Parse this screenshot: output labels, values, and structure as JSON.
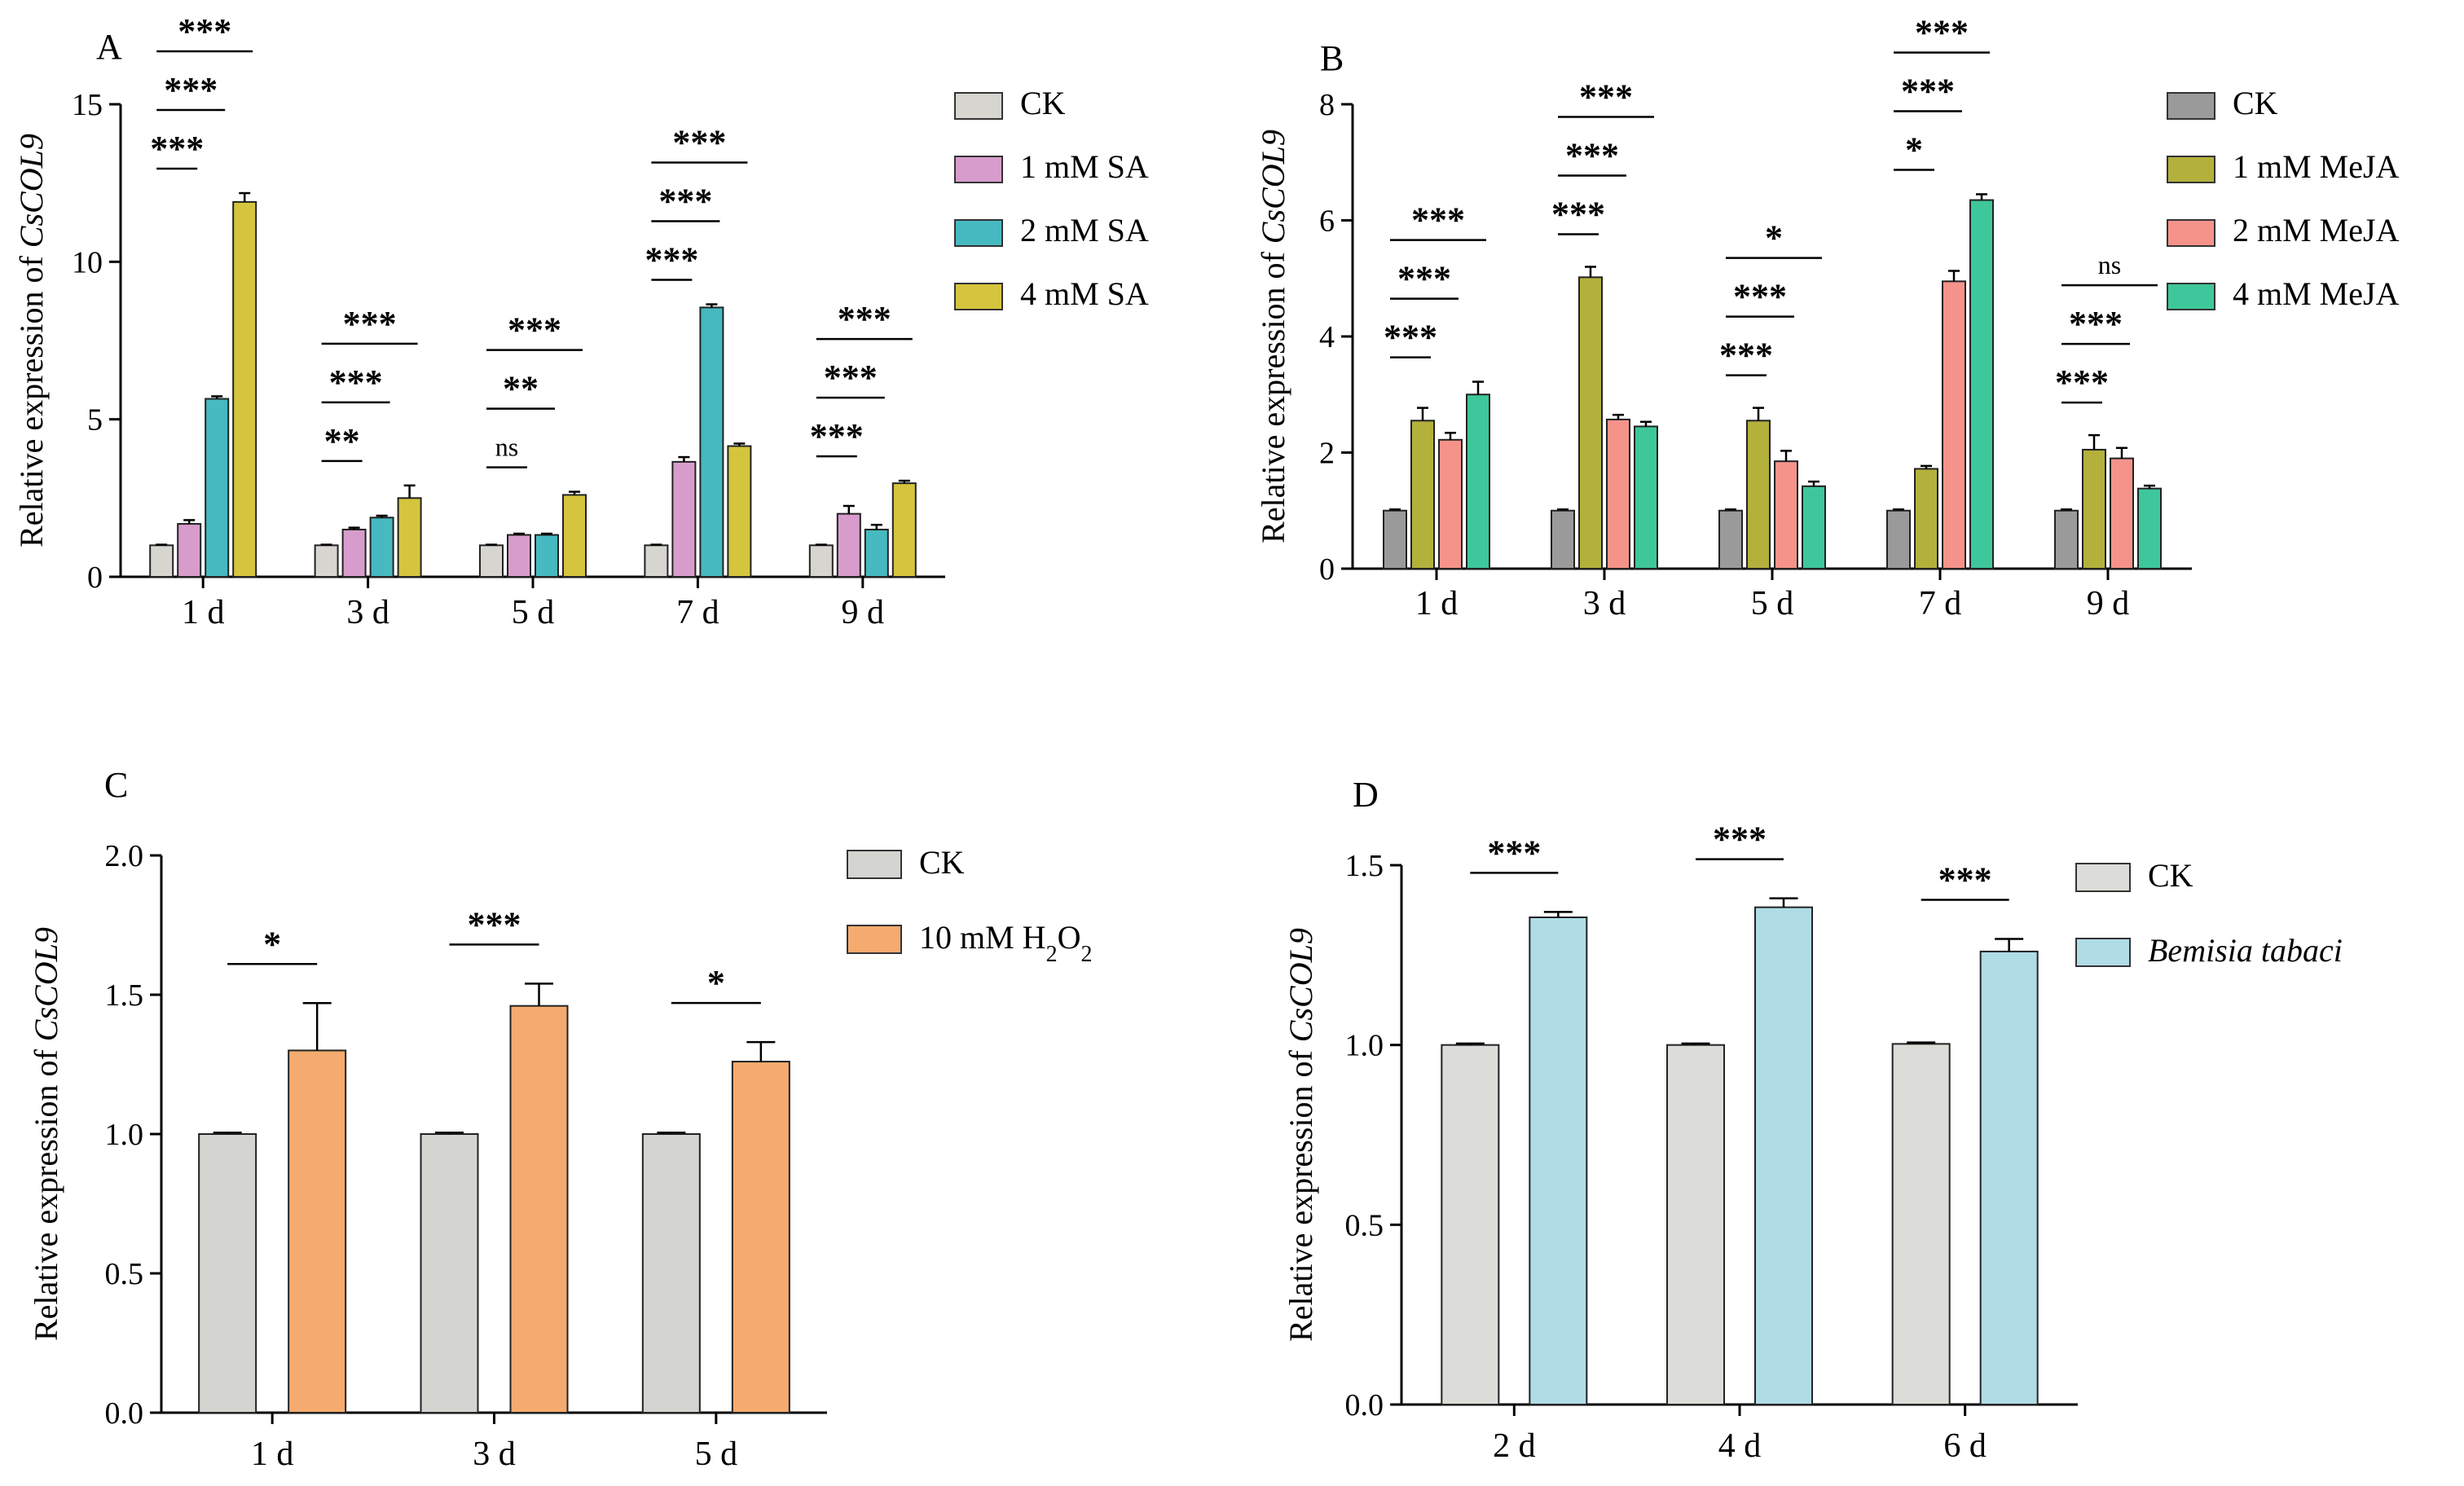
{
  "chart_data": [
    {
      "panel": "A",
      "type": "bar",
      "ylabel_prefix": "Relative expression of ",
      "ylabel_gene": "CsCOL9",
      "ylim": [
        0,
        15
      ],
      "yticks": [
        "0",
        "5",
        "10",
        "15"
      ],
      "categories": [
        "1 d",
        "3 d",
        "5 d",
        "7 d",
        "9 d"
      ],
      "series": [
        {
          "name": "CK",
          "name_sub": "",
          "color": "#d6d5d0",
          "values": [
            1.0,
            1.0,
            1.0,
            1.0,
            1.0
          ],
          "errors": [
            0.02,
            0.02,
            0.02,
            0.02,
            0.02
          ]
        },
        {
          "name": "1 mM SA",
          "name_sub": "",
          "color": "#d79ccc",
          "values": [
            1.68,
            1.5,
            1.33,
            3.65,
            2.0
          ],
          "errors": [
            0.12,
            0.06,
            0.04,
            0.15,
            0.25
          ]
        },
        {
          "name": "2 mM SA",
          "name_sub": "",
          "color": "#46b9c1",
          "values": [
            5.65,
            1.88,
            1.33,
            8.55,
            1.5
          ],
          "errors": [
            0.08,
            0.06,
            0.04,
            0.1,
            0.15
          ]
        },
        {
          "name": "4 mM SA",
          "name_sub": "",
          "color": "#d5c53e",
          "values": [
            11.9,
            2.5,
            2.6,
            4.15,
            2.97
          ],
          "errors": [
            0.28,
            0.4,
            0.1,
            0.08,
            0.08
          ]
        }
      ],
      "significance": [
        [
          {
            "t": 1,
            "label": "***"
          },
          {
            "t": 2,
            "label": "***"
          },
          {
            "t": 3,
            "label": "***"
          }
        ],
        [
          {
            "t": 1,
            "label": "**"
          },
          {
            "t": 2,
            "label": "***"
          },
          {
            "t": 3,
            "label": "***"
          }
        ],
        [
          {
            "t": 1,
            "label": "ns"
          },
          {
            "t": 2,
            "label": "**"
          },
          {
            "t": 3,
            "label": "***"
          }
        ],
        [
          {
            "t": 1,
            "label": "***"
          },
          {
            "t": 2,
            "label": "***"
          },
          {
            "t": 3,
            "label": "***"
          }
        ],
        [
          {
            "t": 1,
            "label": "***"
          },
          {
            "t": 2,
            "label": "***"
          },
          {
            "t": 3,
            "label": "***"
          }
        ]
      ]
    },
    {
      "panel": "B",
      "type": "bar",
      "ylabel_prefix": "Relative expression of ",
      "ylabel_gene": "CsCOL9",
      "ylim": [
        0,
        8
      ],
      "yticks": [
        "0",
        "2",
        "4",
        "6",
        "8"
      ],
      "categories": [
        "1 d",
        "3 d",
        "5 d",
        "7 d",
        "9 d"
      ],
      "series": [
        {
          "name": "CK",
          "name_sub": "",
          "color": "#9a9a9a",
          "values": [
            1.0,
            1.0,
            1.0,
            1.0,
            1.0
          ],
          "errors": [
            0.02,
            0.02,
            0.02,
            0.02,
            0.02
          ]
        },
        {
          "name": "1 mM MeJA",
          "name_sub": "",
          "color": "#b3b03c",
          "values": [
            2.55,
            5.02,
            2.55,
            1.72,
            2.05
          ],
          "errors": [
            0.22,
            0.18,
            0.22,
            0.05,
            0.25
          ]
        },
        {
          "name": "2 mM MeJA",
          "name_sub": "",
          "color": "#f5938a",
          "values": [
            2.22,
            2.57,
            1.85,
            4.95,
            1.9
          ],
          "errors": [
            0.12,
            0.08,
            0.18,
            0.18,
            0.18
          ]
        },
        {
          "name": "4 mM MeJA",
          "name_sub": "",
          "color": "#3dc79a",
          "values": [
            3.0,
            2.45,
            1.42,
            6.35,
            1.38
          ],
          "errors": [
            0.22,
            0.08,
            0.08,
            0.1,
            0.05
          ]
        }
      ],
      "significance": [
        [
          {
            "t": 1,
            "label": "***"
          },
          {
            "t": 2,
            "label": "***"
          },
          {
            "t": 3,
            "label": "***"
          }
        ],
        [
          {
            "t": 1,
            "label": "***"
          },
          {
            "t": 2,
            "label": "***"
          },
          {
            "t": 3,
            "label": "***"
          }
        ],
        [
          {
            "t": 1,
            "label": "***"
          },
          {
            "t": 2,
            "label": "***"
          },
          {
            "t": 3,
            "label": "*"
          }
        ],
        [
          {
            "t": 1,
            "label": "*"
          },
          {
            "t": 2,
            "label": "***"
          },
          {
            "t": 3,
            "label": "***"
          }
        ],
        [
          {
            "t": 1,
            "label": "***"
          },
          {
            "t": 2,
            "label": "***"
          },
          {
            "t": 3,
            "label": "ns"
          }
        ]
      ]
    },
    {
      "panel": "C",
      "type": "bar",
      "ylabel_prefix": "Relative expression of ",
      "ylabel_gene": "CsCOL9",
      "ylim": [
        0,
        2.0
      ],
      "yticks": [
        "0.0",
        "0.5",
        "1.0",
        "1.5",
        "2.0"
      ],
      "categories": [
        "1 d",
        "3 d",
        "5 d"
      ],
      "series": [
        {
          "name": "CK",
          "name_sub": "",
          "color": "#d4d4d0",
          "values": [
            1.0,
            1.0,
            1.0
          ],
          "errors": [
            0.005,
            0.005,
            0.005
          ]
        },
        {
          "name": "10 mM H",
          "name_sub": "2",
          "name_mid": "O",
          "name_sub2": "2",
          "color": "#f5ab6f",
          "values": [
            1.3,
            1.46,
            1.26
          ],
          "errors": [
            0.17,
            0.08,
            0.07
          ]
        }
      ],
      "significance": [
        [
          {
            "t": 1,
            "label": "*"
          }
        ],
        [
          {
            "t": 1,
            "label": "***"
          }
        ],
        [
          {
            "t": 1,
            "label": "*"
          }
        ]
      ]
    },
    {
      "panel": "D",
      "type": "bar",
      "ylabel_prefix": "Relative expression of ",
      "ylabel_gene": "CsCOL9",
      "ylim": [
        0,
        1.5
      ],
      "yticks": [
        "0.0",
        "0.5",
        "1.0",
        "1.5"
      ],
      "categories": [
        "2 d",
        "4 d",
        "6 d"
      ],
      "series": [
        {
          "name": "CK",
          "name_sub": "",
          "color": "#dcdcd8",
          "values": [
            1.0,
            1.0,
            1.003
          ],
          "errors": [
            0.004,
            0.004,
            0.004
          ]
        },
        {
          "name": "Bemisia tabaci",
          "name_sub": "",
          "italic": true,
          "color": "#b0dce6",
          "values": [
            1.355,
            1.383,
            1.26
          ],
          "errors": [
            0.015,
            0.025,
            0.035
          ]
        }
      ],
      "significance": [
        [
          {
            "t": 1,
            "label": "***"
          }
        ],
        [
          {
            "t": 1,
            "label": "***"
          }
        ],
        [
          {
            "t": 1,
            "label": "***"
          }
        ]
      ]
    }
  ]
}
